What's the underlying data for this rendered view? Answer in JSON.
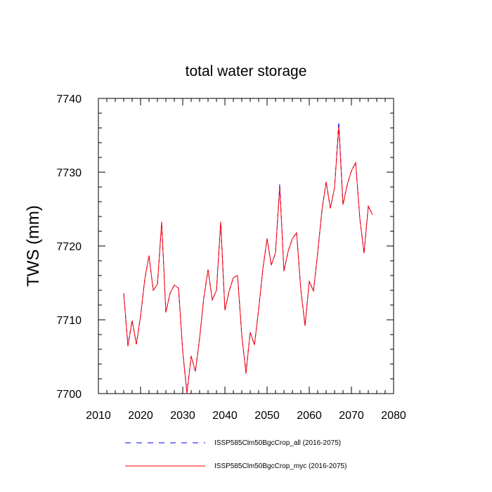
{
  "chart_data": {
    "type": "line",
    "title": "total water storage",
    "xlabel": "",
    "ylabel": "TWS  (mm)",
    "xlim": [
      2010,
      2080
    ],
    "ylim": [
      7700,
      7740
    ],
    "x_ticks": [
      2010,
      2020,
      2030,
      2040,
      2050,
      2060,
      2070,
      2080
    ],
    "y_ticks": [
      7700,
      7710,
      7720,
      7730,
      7740
    ],
    "x_tick_labels": [
      "2010",
      "2020",
      "2030",
      "2040",
      "2050",
      "2060",
      "2070",
      "2080"
    ],
    "y_tick_labels": [
      "7700",
      "7710",
      "7720",
      "7730",
      "7740"
    ],
    "legend_position": "bottom",
    "grid": false,
    "x": [
      2016,
      2017,
      2018,
      2019,
      2020,
      2021,
      2022,
      2023,
      2024,
      2025,
      2026,
      2027,
      2028,
      2029,
      2030,
      2031,
      2032,
      2033,
      2034,
      2035,
      2036,
      2037,
      2038,
      2039,
      2040,
      2041,
      2042,
      2043,
      2044,
      2045,
      2046,
      2047,
      2048,
      2049,
      2050,
      2051,
      2052,
      2053,
      2054,
      2055,
      2056,
      2057,
      2058,
      2059,
      2060,
      2061,
      2062,
      2063,
      2064,
      2065,
      2066,
      2067,
      2068,
      2069,
      2070,
      2071,
      2072,
      2073,
      2074,
      2075
    ],
    "series": [
      {
        "name": "ISSP585Clm50BgcCrop_all (2016-2075)",
        "color": "#0000ff",
        "dash": "dashed",
        "values": [
          7713.6,
          7706.6,
          7709.9,
          7706.7,
          7710.5,
          7715.5,
          7718.7,
          7714.0,
          7714.8,
          7723.1,
          7711.0,
          7713.6,
          7714.7,
          7714.3,
          7705.7,
          7700.2,
          7705.1,
          7703.0,
          7707.5,
          7713.0,
          7716.8,
          7712.7,
          7714.0,
          7723.1,
          7711.3,
          7713.9,
          7715.7,
          7716.0,
          7707.9,
          7702.9,
          7708.3,
          7706.6,
          7711.4,
          7716.9,
          7721.0,
          7717.4,
          7719.1,
          7728.4,
          7716.6,
          7719.3,
          7721.0,
          7721.8,
          7714.1,
          7709.2,
          7715.2,
          7713.9,
          7719.1,
          7724.8,
          7728.7,
          7725.1,
          7727.9,
          7736.8,
          7725.6,
          7728.3,
          7730.2,
          7731.3,
          7723.7,
          7719.0,
          7725.4,
          7724.2
        ]
      },
      {
        "name": "ISSP585Clm50BgcCrop_myc (2016-2075)",
        "color": "#ff0000",
        "dash": "solid",
        "values": [
          7713.6,
          7706.4,
          7709.9,
          7706.7,
          7710.5,
          7715.5,
          7718.7,
          7714.0,
          7714.8,
          7723.3,
          7711.0,
          7713.6,
          7714.7,
          7714.3,
          7705.7,
          7700.0,
          7705.1,
          7703.0,
          7707.5,
          7713.0,
          7716.8,
          7712.7,
          7714.0,
          7723.3,
          7711.3,
          7713.9,
          7715.7,
          7716.0,
          7707.9,
          7702.7,
          7708.3,
          7706.6,
          7711.4,
          7716.9,
          7721.0,
          7717.4,
          7719.1,
          7728.0,
          7716.6,
          7719.3,
          7721.0,
          7721.8,
          7714.1,
          7709.2,
          7715.2,
          7713.9,
          7719.1,
          7724.8,
          7728.7,
          7725.1,
          7727.9,
          7736.2,
          7725.6,
          7728.3,
          7730.2,
          7731.3,
          7723.7,
          7719.0,
          7725.4,
          7724.2
        ]
      }
    ]
  }
}
